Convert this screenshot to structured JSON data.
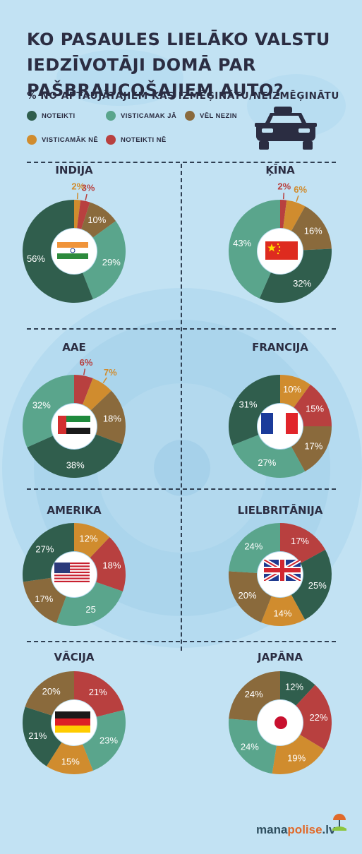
{
  "title": "KO PASAULES LIELĀKO VALSTU IEDZĪVOTĀJI DOMĀ PAR PAŠBRAUCOŠAJIEM AUTO?",
  "subtitle": "% NO APTAUJĀTAJIEM KAS IZMĒĢINĀTU/NEIZMĒĢINĀTU",
  "legend": [
    {
      "label": "NOTEIKTI",
      "color": "#305e4d"
    },
    {
      "label": "VISTICAMAK JĀ",
      "color": "#5aa58c"
    },
    {
      "label": "VĒL NEZIN",
      "color": "#8a6a3c"
    },
    {
      "label": "VISTICAMĀK NĒ",
      "color": "#d08c2e"
    },
    {
      "label": "NOTEIKTI NĒ",
      "color": "#b8403f"
    }
  ],
  "icons": [
    "car-icon",
    "india-flag-icon",
    "china-flag-icon",
    "uae-flag-icon",
    "france-flag-icon",
    "usa-flag-icon",
    "uk-flag-icon",
    "germany-flag-icon",
    "japan-flag-icon"
  ],
  "colors": {
    "noteikti": "#305e4d",
    "visticamak_ja": "#5aa58c",
    "vel_nezin": "#8a6a3c",
    "visticamak_ne": "#d08c2e",
    "noteikti_ne": "#b8403f",
    "background": "#c2e2f3",
    "text": "#2b2d42"
  },
  "chart_data": [
    {
      "type": "pie",
      "title": "INDIJA",
      "slices": [
        {
          "category": "VISTICAMĀK NĒ",
          "value": 2,
          "label": "2%",
          "outside": true
        },
        {
          "category": "NOTEIKTI NĒ",
          "value": 3,
          "label": "3%",
          "outside": true
        },
        {
          "category": "VĒL NEZIN",
          "value": 10,
          "label": "10%"
        },
        {
          "category": "VISTICAMAK JĀ",
          "value": 29,
          "label": "29%"
        },
        {
          "category": "NOTEIKTI",
          "value": 56,
          "label": "56%"
        }
      ]
    },
    {
      "type": "pie",
      "title": "ĶĪNA",
      "slices": [
        {
          "category": "NOTEIKTI NĒ",
          "value": 2,
          "label": "2%",
          "outside": true
        },
        {
          "category": "VISTICAMĀK NĒ",
          "value": 6,
          "label": "6%",
          "outside": true
        },
        {
          "category": "VĒL NEZIN",
          "value": 16,
          "label": "16%"
        },
        {
          "category": "NOTEIKTI",
          "value": 32,
          "label": "32%"
        },
        {
          "category": "VISTICAMAK JĀ",
          "value": 43,
          "label": "43%"
        }
      ]
    },
    {
      "type": "pie",
      "title": "AAE",
      "slices": [
        {
          "category": "NOTEIKTI NĒ",
          "value": 6,
          "label": "6%",
          "outside": true
        },
        {
          "category": "VISTICAMĀK NĒ",
          "value": 7,
          "label": "7%",
          "outside": true
        },
        {
          "category": "VĒL NEZIN",
          "value": 18,
          "label": "18%"
        },
        {
          "category": "NOTEIKTI",
          "value": 38,
          "label": "38%"
        },
        {
          "category": "VISTICAMAK JĀ",
          "value": 32,
          "label": "32%"
        }
      ]
    },
    {
      "type": "pie",
      "title": "FRANCIJA",
      "slices": [
        {
          "category": "VISTICAMĀK NĒ",
          "value": 10,
          "label": "10%"
        },
        {
          "category": "NOTEIKTI NĒ",
          "value": 15,
          "label": "15%"
        },
        {
          "category": "VĒL NEZIN",
          "value": 17,
          "label": "17%"
        },
        {
          "category": "VISTICAMAK JĀ",
          "value": 27,
          "label": "27%"
        },
        {
          "category": "NOTEIKTI",
          "value": 31,
          "label": "31%"
        }
      ]
    },
    {
      "type": "pie",
      "title": "AMERIKA",
      "slices": [
        {
          "category": "VISTICAMĀK NĒ",
          "value": 12,
          "label": "12%"
        },
        {
          "category": "NOTEIKTI NĒ",
          "value": 18,
          "label": "18%"
        },
        {
          "category": "VISTICAMAK JĀ",
          "value": 25,
          "label": "25"
        },
        {
          "category": "VĒL NEZIN",
          "value": 17,
          "label": "17%"
        },
        {
          "category": "NOTEIKTI",
          "value": 27,
          "label": "27%"
        }
      ]
    },
    {
      "type": "pie",
      "title": "LIELBRITĀNIJA",
      "slices": [
        {
          "category": "NOTEIKTI NĒ",
          "value": 17,
          "label": "17%"
        },
        {
          "category": "NOTEIKTI",
          "value": 25,
          "label": "25%"
        },
        {
          "category": "VISTICAMĀK NĒ",
          "value": 14,
          "label": "14%"
        },
        {
          "category": "VĒL NEZIN",
          "value": 20,
          "label": "20%"
        },
        {
          "category": "VISTICAMAK JĀ",
          "value": 24,
          "label": "24%"
        }
      ]
    },
    {
      "type": "pie",
      "title": "VĀCIJA",
      "slices": [
        {
          "category": "NOTEIKTI NĒ",
          "value": 21,
          "label": "21%"
        },
        {
          "category": "VISTICAMAK JĀ",
          "value": 23,
          "label": "23%"
        },
        {
          "category": "VISTICAMĀK NĒ",
          "value": 15,
          "label": "15%"
        },
        {
          "category": "NOTEIKTI",
          "value": 21,
          "label": "21%"
        },
        {
          "category": "VĒL NEZIN",
          "value": 20,
          "label": "20%"
        }
      ]
    },
    {
      "type": "pie",
      "title": "JAPĀNA",
      "slices": [
        {
          "category": "NOTEIKTI",
          "value": 12,
          "label": "12%"
        },
        {
          "category": "NOTEIKTI NĒ",
          "value": 22,
          "label": "22%"
        },
        {
          "category": "VISTICAMĀK NĒ",
          "value": 19,
          "label": "19%"
        },
        {
          "category": "VISTICAMAK JĀ",
          "value": 24,
          "label": "24%"
        },
        {
          "category": "VĒL NEZIN",
          "value": 24,
          "label": "24%"
        }
      ]
    }
  ],
  "logo": {
    "part1": "mana",
    "part2": "polise",
    "part3": ".lv"
  }
}
